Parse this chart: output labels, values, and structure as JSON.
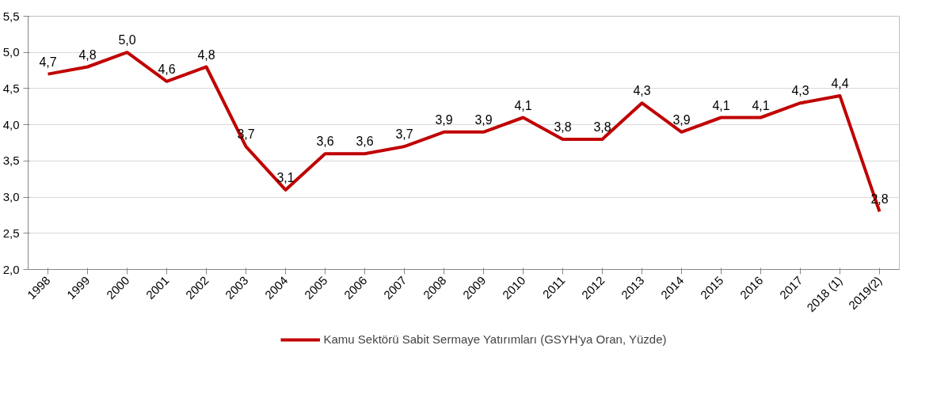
{
  "chart_data": {
    "type": "line",
    "categories": [
      "1998",
      "1999",
      "2000",
      "2001",
      "2002",
      "2003",
      "2004",
      "2005",
      "2006",
      "2007",
      "2008",
      "2009",
      "2010",
      "2011",
      "2012",
      "2013",
      "2014",
      "2015",
      "2016",
      "2017",
      "2018 (1)",
      "2019(2)"
    ],
    "series": [
      {
        "name": "Kamu Sektörü Sabit Sermaye Yatırımları (GSYH'ya Oran, Yüzde)",
        "color": "#c00000",
        "values": [
          4.7,
          4.8,
          5.0,
          4.6,
          4.8,
          3.7,
          3.1,
          3.6,
          3.6,
          3.7,
          3.9,
          3.9,
          4.1,
          3.8,
          3.8,
          4.3,
          3.9,
          4.1,
          4.1,
          4.3,
          4.4,
          2.8
        ],
        "value_labels": [
          "4,7",
          "4,8",
          "5,0",
          "4,6",
          "4,8",
          "3,7",
          "3,1",
          "3,6",
          "3,6",
          "3,7",
          "3,9",
          "3,9",
          "4,1",
          "3,8",
          "3,8",
          "4,3",
          "3,9",
          "4,1",
          "4,1",
          "4,3",
          "4,4",
          "2,8"
        ]
      }
    ],
    "ylim": [
      2.0,
      5.5
    ],
    "yticks": [
      {
        "value": 2.0,
        "label": "2,0"
      },
      {
        "value": 2.5,
        "label": "2,5"
      },
      {
        "value": 3.0,
        "label": "3,0"
      },
      {
        "value": 3.5,
        "label": "3,5"
      },
      {
        "value": 4.0,
        "label": "4,0"
      },
      {
        "value": 4.5,
        "label": "4,5"
      },
      {
        "value": 5.0,
        "label": "5,0"
      },
      {
        "value": 5.5,
        "label": "5,5"
      }
    ],
    "grid": "y",
    "legend": "bottom",
    "marker": "none",
    "line_style": "solid"
  }
}
